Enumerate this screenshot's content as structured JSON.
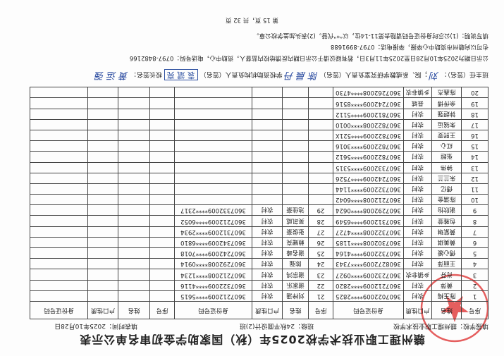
{
  "title": "赣州理工职业技术学校2025年（秋）国家助学金初审名单公示表",
  "info": {
    "school": "填报学校：赣州理工职业技术学校",
    "class": "班级：24秋平面设计(2)班",
    "date": "填表时间：2025年10月28日"
  },
  "headers": {
    "no": "序号",
    "name": "姓名",
    "hukou": "户口性质",
    "id": "身份证号码"
  },
  "rows": [
    [
      "1",
      "陈玉梅",
      "农村",
      "3607022009****2825",
      "21",
      "刘梓涵",
      "农村",
      "360721​2009****5615"
    ],
    [
      "2",
      "黄萍",
      "农村",
      "360721​2009****2820",
      "22",
      "谢家乐",
      "农村",
      "360732​2009****4116"
    ],
    [
      "3",
      "肖芬",
      "乡镇非农",
      "360723​2009****0927",
      "23",
      "谢宗鸿",
      "农村",
      "360721​2008****1234"
    ],
    [
      "4",
      "王丽萍",
      "农村",
      "360827​2009****7343",
      "24",
      "陈强",
      "农村",
      "360729​2008****0914"
    ],
    [
      "5",
      "傅心媛",
      "农村",
      "360732​2009****4164",
      "25",
      "谢名峰",
      "农村",
      "360724​2009****7018"
    ],
    [
      "6",
      "黄美琪",
      "农村",
      "360730​2008****1185",
      "26",
      "赖耀亮",
      "农村",
      "360734​2009****6810"
    ],
    [
      "7",
      "黄紫琳",
      "农村",
      "360732​2008****4727",
      "27",
      "张俊豪",
      "农村",
      "360731​2009****2934"
    ],
    [
      "8",
      "包雅萱",
      "农村",
      "360731​2009****6549",
      "28",
      "吴凯威",
      "农村",
      "360721​2009****6052"
    ],
    [
      "9",
      "谢欣怡",
      "农村",
      "360729​2008****0624",
      "29",
      "池佳豪",
      "农村",
      "360733​2009****2317"
    ],
    [
      "10",
      "陈濡金",
      "农村",
      "360721​2008****6042",
      "",
      "",
      "",
      ""
    ],
    [
      "11",
      "傅亿",
      "农村",
      "360732​2009****1144",
      "",
      "",
      "",
      ""
    ],
    [
      "12",
      "朱兰兰",
      "农村",
      "360724​2009****7526",
      "",
      "",
      "",
      ""
    ],
    [
      "13",
      "钟伟",
      "农村",
      "360733​2009****5315",
      "",
      "",
      "",
      ""
    ],
    [
      "14",
      "张超",
      "农村",
      "360782​2009****5612",
      "",
      "",
      "",
      ""
    ],
    [
      "15",
      "红心",
      "农村",
      "360782​2009****3016",
      "",
      "",
      "",
      ""
    ],
    [
      "16",
      "王熙雯",
      "农村",
      "360782​2009****521X",
      "",
      "",
      "",
      ""
    ],
    [
      "17",
      "朱铭运",
      "农村",
      "360782​2008****0010",
      "",
      "",
      "",
      ""
    ],
    [
      "18",
      "钟超强",
      "农村",
      "360781​2009****5112",
      "",
      "",
      "",
      ""
    ],
    [
      "19",
      "余传博",
      "县城",
      "360724​2009****8516",
      "",
      "",
      "",
      ""
    ],
    [
      "20",
      "陈鑫杰",
      "乡镇非农",
      "360726​2008****4730",
      "",
      "",
      "",
      ""
    ]
  ],
  "signatures": {
    "teacher_label": "班主任（签名）：",
    "teacher_sig": "刘",
    "dept_label": "；院、系或教学研究室负责人（签名）",
    "dept_sig": "陈 晨 丹",
    "aid_label": "学校资助机构负责人（签名）",
    "aid_sig": "袁 斌 亮",
    "principal_label": "校长签名：",
    "principal_sig": "黄 运 强"
  },
  "notes": [
    "公示日期为2025年10月28日至2025年11月3日，若有疑议请于公示日期内反馈给校内监督人，资助中心，电话号码：0797-8482166",
    "也可以向赣州市资助中心举报，举报电话：0797-8991688",
    "填写说明：(1)公示时身份证号码请隐去第11-14位，以“*”代替。(2)表头加盖学校公章。"
  ],
  "page": "第 15 页，共 32 页",
  "seal_color": "#dc2828"
}
